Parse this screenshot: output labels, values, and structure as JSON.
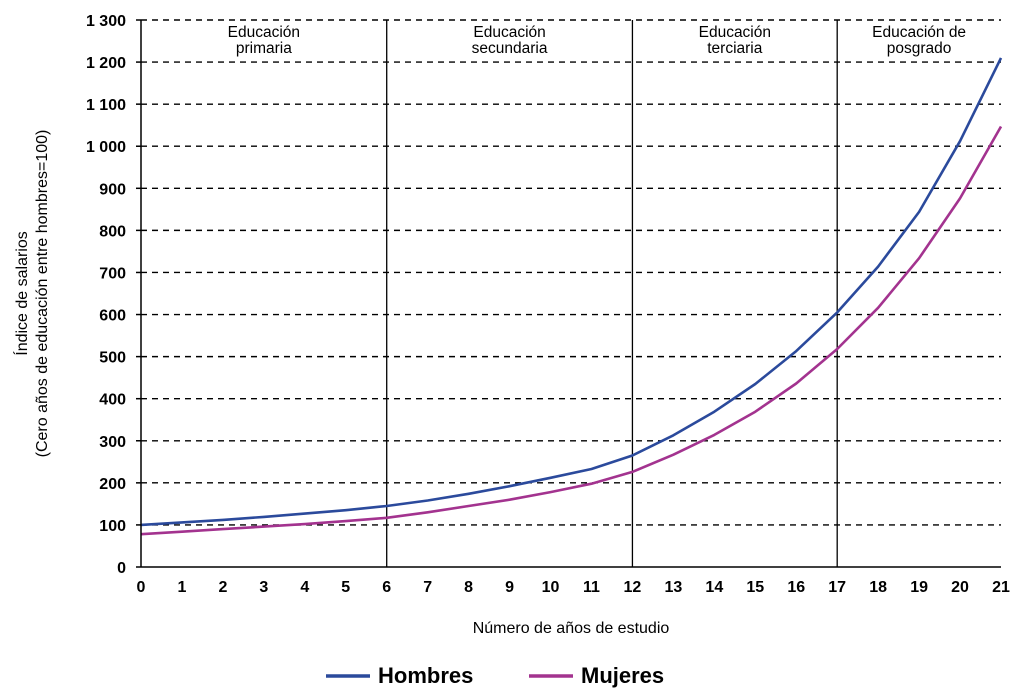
{
  "chart_data": {
    "type": "line",
    "xlabel": "Número de años de estudio",
    "ylabel": [
      "Índice de salarios",
      "(Cero años de educación entre hombres=100)"
    ],
    "xlim": [
      0,
      21
    ],
    "ylim": [
      0,
      1300
    ],
    "x": [
      0,
      1,
      2,
      3,
      4,
      5,
      6,
      7,
      8,
      9,
      10,
      11,
      12,
      13,
      14,
      15,
      16,
      17,
      18,
      19,
      20,
      21
    ],
    "x_ticks": [
      "0",
      "1",
      "2",
      "3",
      "4",
      "5",
      "6",
      "7",
      "8",
      "9",
      "10",
      "11",
      "12",
      "13",
      "14",
      "15",
      "16",
      "17",
      "18",
      "19",
      "20",
      "21"
    ],
    "y_ticks": [
      {
        "value": 0,
        "label": "0"
      },
      {
        "value": 100,
        "label": "100"
      },
      {
        "value": 200,
        "label": "200"
      },
      {
        "value": 300,
        "label": "300"
      },
      {
        "value": 400,
        "label": "400"
      },
      {
        "value": 500,
        "label": "500"
      },
      {
        "value": 600,
        "label": "600"
      },
      {
        "value": 700,
        "label": "700"
      },
      {
        "value": 800,
        "label": "800"
      },
      {
        "value": 900,
        "label": "900"
      },
      {
        "value": 1000,
        "label": "1 000"
      },
      {
        "value": 1100,
        "label": "1 100"
      },
      {
        "value": 1200,
        "label": "1 200"
      },
      {
        "value": 1300,
        "label": "1 300"
      }
    ],
    "grid": "horizontal dashed",
    "series": [
      {
        "name": "Hombres",
        "color": "#2b4a9c",
        "values": [
          100,
          106,
          112,
          119,
          127,
          135,
          145,
          158,
          174,
          192,
          212,
          233,
          265,
          313,
          369,
          435,
          513,
          605,
          714,
          844,
          1012,
          1210
        ]
      },
      {
        "name": "Mujeres",
        "color": "#a3338f",
        "values": [
          78,
          84,
          90,
          96,
          102,
          109,
          117,
          130,
          145,
          160,
          178,
          198,
          226,
          267,
          314,
          369,
          436,
          518,
          616,
          734,
          876,
          1047
        ]
      }
    ],
    "regions": [
      {
        "from": 0,
        "to": 6,
        "label": [
          "Educación",
          "primaria"
        ]
      },
      {
        "from": 6,
        "to": 12,
        "label": [
          "Educación",
          "secundaria"
        ]
      },
      {
        "from": 12,
        "to": 17,
        "label": [
          "Educación",
          "terciaria"
        ]
      },
      {
        "from": 17,
        "to": 21,
        "label": [
          "Educación de",
          "posgrado"
        ]
      }
    ],
    "legend_position": "bottom-center"
  }
}
